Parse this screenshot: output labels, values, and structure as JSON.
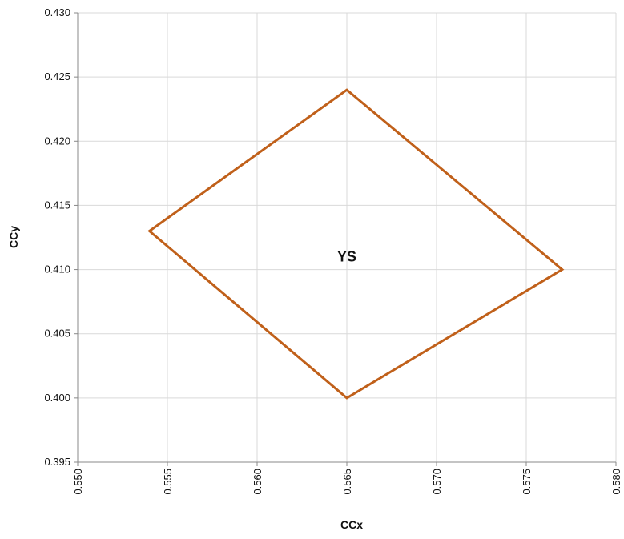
{
  "chart_data": {
    "type": "scatter",
    "title": "",
    "xlabel": "CCx",
    "ylabel": "CCy",
    "xlim": [
      0.55,
      0.58
    ],
    "ylim": [
      0.395,
      0.43
    ],
    "xticks": [
      "0.550",
      "0.555",
      "0.560",
      "0.565",
      "0.570",
      "0.575",
      "0.580"
    ],
    "yticks": [
      "0.395",
      "0.400",
      "0.405",
      "0.410",
      "0.415",
      "0.420",
      "0.425",
      "0.430"
    ],
    "grid": true,
    "legend": "none",
    "series": [
      {
        "label": "YS",
        "color": "#C0601A",
        "closed": true,
        "points": [
          {
            "x": 0.565,
            "y": 0.424
          },
          {
            "x": 0.577,
            "y": 0.41
          },
          {
            "x": 0.565,
            "y": 0.4
          },
          {
            "x": 0.554,
            "y": 0.413
          }
        ],
        "label_at": {
          "x": 0.565,
          "y": 0.411
        }
      }
    ],
    "colors": {
      "grid": "#d9d9d9",
      "axis": "#888888"
    }
  }
}
